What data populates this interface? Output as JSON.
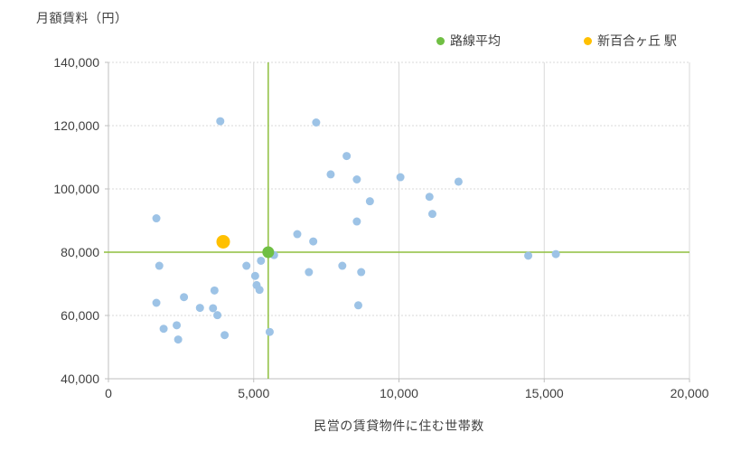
{
  "chart_data": {
    "type": "scatter",
    "title": "",
    "ylabel": "月額賃料（円）",
    "xlabel": "民営の賃貸物件に住む世帯数",
    "xlim": [
      0,
      20000
    ],
    "ylim": [
      40000,
      140000
    ],
    "grid": true,
    "legend_position": "top",
    "x_ticks": [
      {
        "value": 0,
        "label": "0"
      },
      {
        "value": 5000,
        "label": "5,000"
      },
      {
        "value": 10000,
        "label": "10,000"
      },
      {
        "value": 15000,
        "label": "15,000"
      },
      {
        "value": 20000,
        "label": "20,000"
      }
    ],
    "y_ticks": [
      {
        "value": 40000,
        "label": "40,000"
      },
      {
        "value": 60000,
        "label": "60,000"
      },
      {
        "value": 80000,
        "label": "80,000"
      },
      {
        "value": 100000,
        "label": "100,000"
      },
      {
        "value": 120000,
        "label": "120,000"
      },
      {
        "value": 140000,
        "label": "140,000"
      }
    ],
    "series": [
      {
        "id": "stations",
        "name": "",
        "color": "#9DC3E6",
        "marker_radius": 4.5,
        "points": [
          [
            1650,
            90700
          ],
          [
            3850,
            121400
          ],
          [
            7150,
            121000
          ],
          [
            8200,
            110400
          ],
          [
            7650,
            104600
          ],
          [
            8550,
            103000
          ],
          [
            10050,
            103700
          ],
          [
            12050,
            102300
          ],
          [
            11050,
            97500
          ],
          [
            9000,
            96100
          ],
          [
            11150,
            92100
          ],
          [
            8550,
            89700
          ],
          [
            6500,
            85700
          ],
          [
            7050,
            83400
          ],
          [
            5700,
            79100
          ],
          [
            5250,
            77300
          ],
          [
            5050,
            72500
          ],
          [
            5100,
            69600
          ],
          [
            5200,
            68100
          ],
          [
            4750,
            75700
          ],
          [
            1750,
            75700
          ],
          [
            8050,
            75700
          ],
          [
            6900,
            73700
          ],
          [
            8700,
            73700
          ],
          [
            3650,
            67900
          ],
          [
            1650,
            64000
          ],
          [
            2600,
            65800
          ],
          [
            3150,
            62400
          ],
          [
            3600,
            62300
          ],
          [
            3750,
            60100
          ],
          [
            1900,
            55800
          ],
          [
            2350,
            56900
          ],
          [
            2400,
            52400
          ],
          [
            4000,
            53800
          ],
          [
            5550,
            54800
          ],
          [
            8600,
            63200
          ],
          [
            14450,
            78900
          ],
          [
            15400,
            79400
          ]
        ]
      },
      {
        "id": "line-average",
        "name": "路線平均",
        "color": "#70BF44",
        "marker_radius": 6.5,
        "points": [
          [
            5500,
            80000
          ]
        ]
      },
      {
        "id": "shin-yurigaoka",
        "name": "新百合ヶ丘 駅",
        "color": "#FFC000",
        "marker_radius": 7.5,
        "points": [
          [
            3950,
            83300
          ]
        ]
      }
    ],
    "crosshair": {
      "x": 5500,
      "y": 80000
    }
  },
  "legend": {
    "items": [
      {
        "label": "路線平均",
        "color": "#70BF44"
      },
      {
        "label": "新百合ヶ丘 駅",
        "color": "#FFC000"
      }
    ]
  },
  "colors": {
    "station_point": "#9DC3E6",
    "average_point": "#70BF44",
    "highlight_point": "#FFC000",
    "crosshair_line": "#8FBF3F",
    "gridline": "#D9D9D9",
    "axis_line": "#BFBFBF",
    "text": "#3F3F3F"
  }
}
